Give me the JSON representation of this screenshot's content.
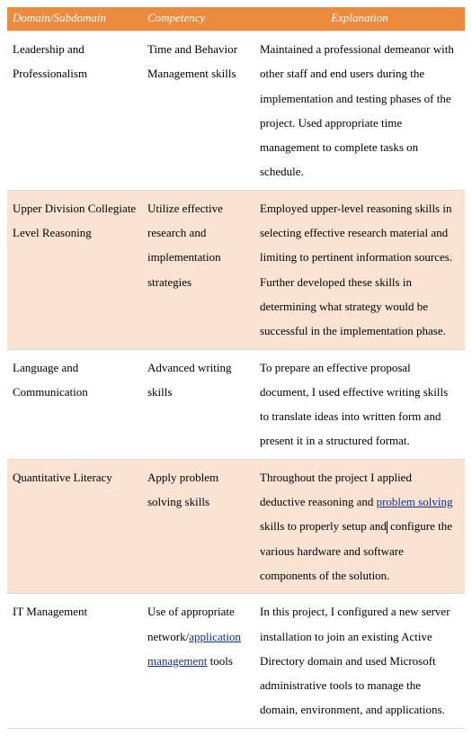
{
  "table": {
    "header_bg": "#ec8a3e",
    "header_fg": "#ffffff",
    "alt_row_bg": "#fbe3d4",
    "border_color": "#d9d9d9",
    "link_color": "#0f2f8f",
    "base_font_size_pt": 10,
    "columns": {
      "domain": "Domain/Subdomain",
      "competency": "Competency",
      "explanation": "Explanation"
    },
    "rows": [
      {
        "domain": "Leadership and Professionalism",
        "competency": "Time and Behavior Management skills",
        "explanation": "Maintained a professional demeanor with other staff and end users during the implementation and testing phases of the project. Used appropriate time management to complete tasks on schedule."
      },
      {
        "domain": "Upper Division Collegiate Level Reasoning",
        "competency": "Utilize effective research and implementation strategies",
        "explanation": "Employed upper-level reasoning skills in selecting effective research material and limiting to pertinent information sources. Further developed these skills in determining what strategy would be successful in the implementation phase."
      },
      {
        "domain": "Language and Communication",
        "competency": "Advanced writing skills",
        "explanation": "To prepare an effective proposal document, I used effective writing skills to translate ideas into written form and present it in a structured format."
      },
      {
        "domain": "Quantitative Literacy",
        "competency": "Apply problem solving skills",
        "explanation_parts": {
          "pre": "Throughout the project I applied deductive reasoning and ",
          "link": "problem solving",
          "mid": " skills to properly setup and",
          "post": " configure the various hardware and software components of the solution."
        }
      },
      {
        "domain": "IT Management",
        "competency_parts": {
          "pre": "Use of appropriate network/",
          "link": "application management",
          "post": " tools"
        },
        "explanation": "In this project, I configured a new server installation to join an existing Active Directory domain and used Microsoft administrative tools to manage the domain, environment, and applications."
      }
    ]
  }
}
